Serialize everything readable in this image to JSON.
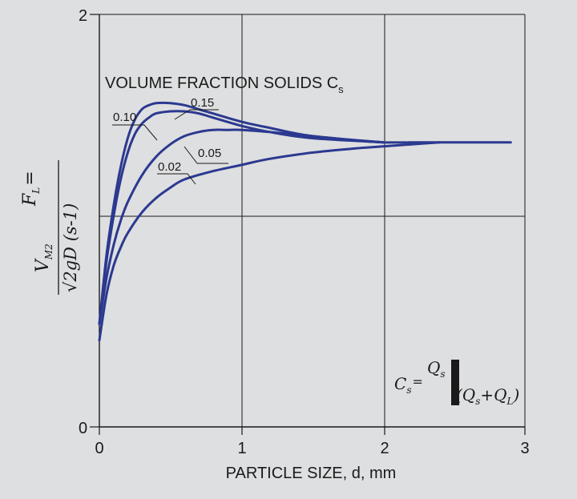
{
  "chart_data": {
    "type": "line",
    "xlabel": "PARTICLE SIZE, d, mm",
    "ylabel_lhs": "F",
    "ylabel_lhs_sub": "L",
    "ylabel_eq": "=",
    "ylabel_num": "V",
    "ylabel_num_sub": "M2",
    "ylabel_den": "√2gD (s-1)",
    "xlim": [
      0,
      3
    ],
    "ylim": [
      0,
      2
    ],
    "x_ticks": [
      "0",
      "1",
      "2",
      "3"
    ],
    "y_ticks": [
      "0",
      "2"
    ],
    "grid": true,
    "legend_title": "VOLUME FRACTION SOLIDS C",
    "legend_title_sub": "s",
    "formula": {
      "lhs": "C",
      "lhs_sub": "s",
      "eq": "=",
      "num": "Q",
      "num_sub": "s",
      "den": "(Q",
      "den_sub1": "s",
      "den_plus": "+Q",
      "den_sub2": "L",
      "den_close": ")"
    },
    "series": [
      {
        "name": "0.02",
        "color": "#2b3990",
        "x": [
          0,
          0.05,
          0.1,
          0.15,
          0.2,
          0.3,
          0.4,
          0.5,
          0.6,
          0.8,
          1.0,
          1.2,
          1.5,
          1.8,
          2.0,
          2.2,
          2.4
        ],
        "y": [
          0.42,
          0.64,
          0.78,
          0.87,
          0.94,
          1.04,
          1.11,
          1.16,
          1.2,
          1.24,
          1.27,
          1.3,
          1.33,
          1.35,
          1.36,
          1.37,
          1.38
        ]
      },
      {
        "name": "0.05",
        "color": "#2b3990",
        "x": [
          0,
          0.05,
          0.1,
          0.15,
          0.2,
          0.3,
          0.4,
          0.5,
          0.6,
          0.7,
          0.8,
          0.9,
          1.0,
          1.2,
          1.5,
          1.8,
          2.0,
          2.3,
          2.6,
          2.9
        ],
        "y": [
          0.5,
          0.72,
          0.88,
          1.0,
          1.09,
          1.22,
          1.31,
          1.37,
          1.41,
          1.43,
          1.44,
          1.44,
          1.44,
          1.43,
          1.41,
          1.39,
          1.38,
          1.38,
          1.38,
          1.38
        ]
      },
      {
        "name": "0.10",
        "color": "#2b3990",
        "x": [
          0,
          0.05,
          0.1,
          0.15,
          0.2,
          0.25,
          0.3,
          0.35,
          0.4,
          0.5,
          0.6,
          0.7,
          0.8,
          1.0,
          1.2,
          1.5,
          2.0
        ],
        "y": [
          0.5,
          0.8,
          1.02,
          1.2,
          1.33,
          1.42,
          1.47,
          1.5,
          1.52,
          1.53,
          1.53,
          1.52,
          1.5,
          1.46,
          1.43,
          1.4,
          1.38
        ]
      },
      {
        "name": "0.15",
        "color": "#2b3990",
        "x": [
          0,
          0.05,
          0.1,
          0.15,
          0.2,
          0.25,
          0.3,
          0.35,
          0.4,
          0.5,
          0.6,
          0.7,
          0.8,
          1.0,
          1.2,
          1.5,
          2.0
        ],
        "y": [
          0.5,
          0.83,
          1.07,
          1.26,
          1.4,
          1.49,
          1.54,
          1.56,
          1.57,
          1.57,
          1.56,
          1.54,
          1.52,
          1.48,
          1.45,
          1.41,
          1.38
        ]
      }
    ]
  }
}
